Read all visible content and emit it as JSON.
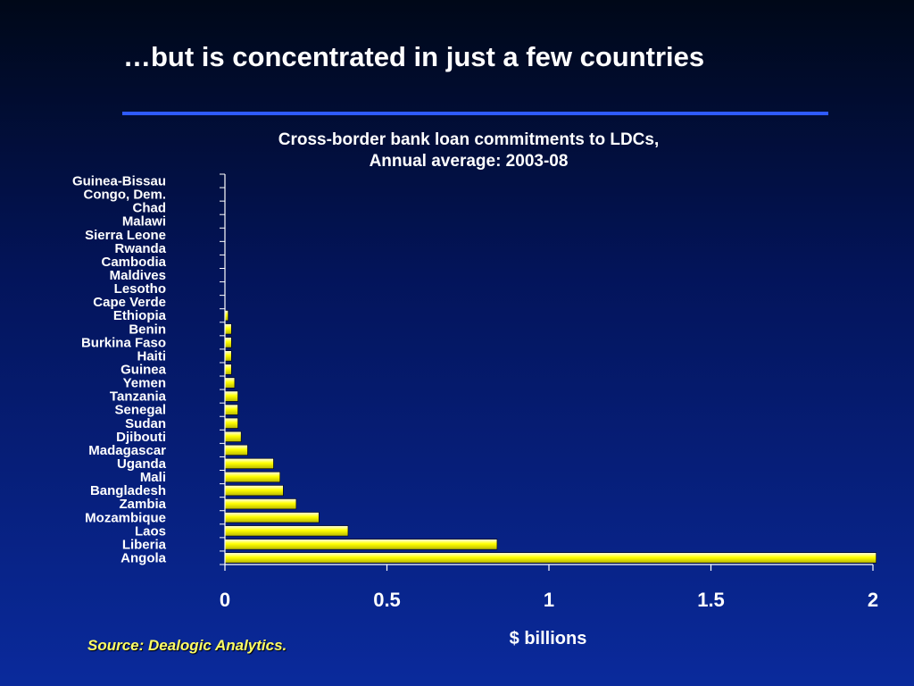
{
  "slide": {
    "title": "…but is concentrated in just a few countries",
    "source": "Source: Dealogic Analytics."
  },
  "colors": {
    "bar": "#ffff00",
    "bar_edge": "#000000",
    "rule": "#2f5bff",
    "axis": "#ffffff"
  },
  "chart_data": {
    "type": "bar",
    "orientation": "horizontal",
    "title": [
      "Cross-border bank loan commitments to LDCs,",
      "Annual average: 2003-08"
    ],
    "xlabel": "$ billions",
    "ylabel": "",
    "xlim": [
      0,
      2
    ],
    "xticks": [
      "0",
      "0.5",
      "1",
      "1.5",
      "2"
    ],
    "grid": false,
    "categories": [
      "Guinea-Bissau",
      "Congo, Dem.",
      "Chad",
      "Malawi",
      "Sierra Leone",
      "Rwanda",
      "Cambodia",
      "Maldives",
      "Lesotho",
      "Cape Verde",
      "Ethiopia",
      "Benin",
      "Burkina Faso",
      "Haiti",
      "Guinea",
      "Yemen",
      "Tanzania",
      "Senegal",
      "Sudan",
      "Djibouti",
      "Madagascar",
      "Uganda",
      "Mali",
      "Bangladesh",
      "Zambia",
      "Mozambique",
      "Laos",
      "Liberia",
      "Angola"
    ],
    "values": [
      0,
      0,
      0,
      0,
      0,
      0,
      0,
      0,
      0,
      0,
      0.01,
      0.02,
      0.02,
      0.02,
      0.02,
      0.03,
      0.04,
      0.04,
      0.04,
      0.05,
      0.07,
      0.15,
      0.17,
      0.18,
      0.22,
      0.29,
      0.38,
      0.84,
      2.01
    ]
  }
}
